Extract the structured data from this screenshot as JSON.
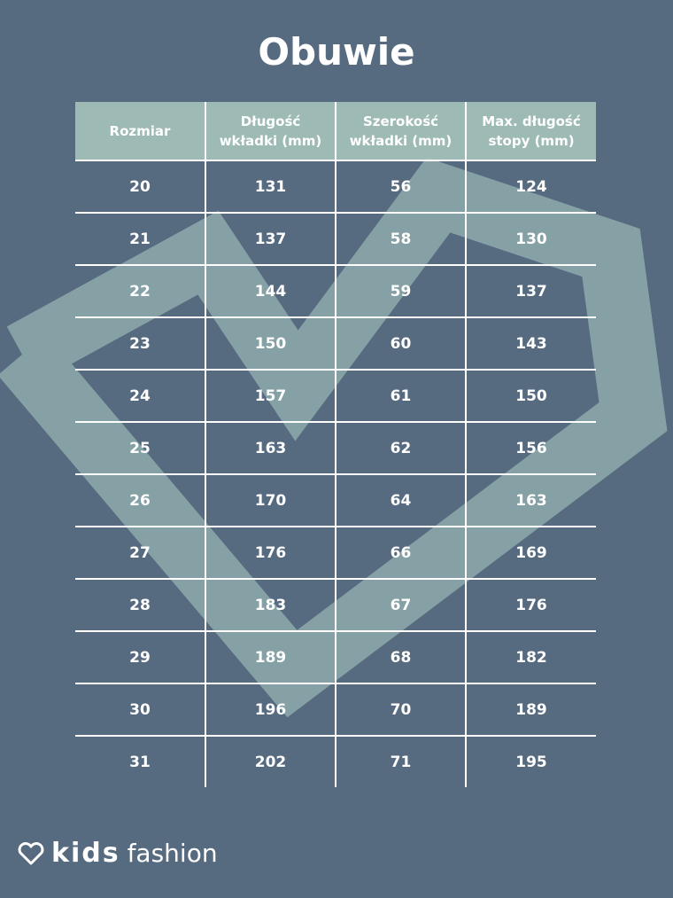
{
  "header": {
    "title": "Obuwie"
  },
  "table": {
    "columns": [
      "Rozmiar",
      "Długość wkładki (mm)",
      "Szerokość wkładki (mm)",
      "Max. długość stopy (mm)"
    ],
    "rows": [
      [
        20,
        131,
        56,
        124
      ],
      [
        21,
        137,
        58,
        130
      ],
      [
        22,
        144,
        59,
        137
      ],
      [
        23,
        150,
        60,
        143
      ],
      [
        24,
        157,
        61,
        150
      ],
      [
        25,
        163,
        62,
        156
      ],
      [
        26,
        170,
        64,
        163
      ],
      [
        27,
        176,
        66,
        169
      ],
      [
        28,
        183,
        67,
        176
      ],
      [
        29,
        189,
        68,
        182
      ],
      [
        30,
        196,
        70,
        189
      ],
      [
        31,
        202,
        71,
        195
      ]
    ]
  },
  "logo": {
    "brand": "kids",
    "suffix": "fashion"
  }
}
